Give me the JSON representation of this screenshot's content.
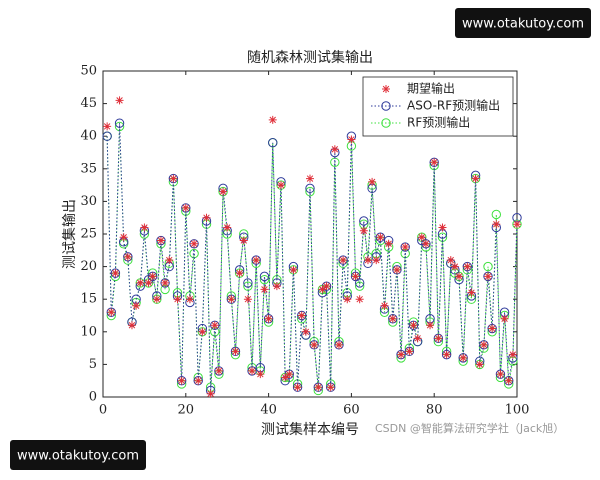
{
  "chart_data": {
    "type": "line",
    "title": "随机森林测试集输出",
    "xlabel": "测试集样本编号",
    "ylabel": "测试集输出",
    "watermarks": [
      "www.otakutoy.com",
      "www.otakutoy.com"
    ],
    "credit": "CSDN @智能算法研究学社（Jack旭）",
    "xlim": [
      0,
      100
    ],
    "xticks": [
      0,
      20,
      40,
      60,
      80,
      100
    ],
    "ylim": [
      0,
      50
    ],
    "yticks": [
      0,
      5,
      10,
      15,
      20,
      25,
      30,
      35,
      40,
      45,
      50
    ],
    "grid": false,
    "legend": "northeast",
    "x": [
      1,
      2,
      3,
      4,
      5,
      6,
      7,
      8,
      9,
      10,
      11,
      12,
      13,
      14,
      15,
      16,
      17,
      18,
      19,
      20,
      21,
      22,
      23,
      24,
      25,
      26,
      27,
      28,
      29,
      30,
      31,
      32,
      33,
      34,
      35,
      36,
      37,
      38,
      39,
      40,
      41,
      42,
      43,
      44,
      45,
      46,
      47,
      48,
      49,
      50,
      51,
      52,
      53,
      54,
      55,
      56,
      57,
      58,
      59,
      60,
      61,
      62,
      63,
      64,
      65,
      66,
      67,
      68,
      69,
      70,
      71,
      72,
      73,
      74,
      75,
      76,
      77,
      78,
      79,
      80,
      81,
      82,
      83,
      84,
      85,
      86,
      87,
      88,
      89,
      90,
      91,
      92,
      93,
      94,
      95,
      96,
      97,
      98,
      99,
      100
    ],
    "series": [
      {
        "name": "期望输出",
        "color": "#e0303a",
        "marker": "star",
        "line": false,
        "values": [
          41.5,
          13,
          19,
          45.5,
          24.5,
          21.5,
          11,
          14,
          17.5,
          26,
          17.5,
          18.5,
          15,
          24,
          17.5,
          21,
          33.5,
          15,
          2.5,
          29,
          15,
          23.5,
          2.5,
          10,
          27.5,
          0.5,
          11,
          4,
          31.5,
          26,
          15,
          7,
          19,
          24,
          15,
          4,
          21,
          3.5,
          16.5,
          12,
          42.5,
          17,
          32.5,
          3,
          3.5,
          19.5,
          1.5,
          12.5,
          10,
          33.5,
          8,
          1.5,
          16.5,
          17,
          1.5,
          38,
          8,
          21,
          15,
          39.5,
          18.5,
          15,
          25.5,
          21,
          33,
          21,
          24.5,
          14,
          23.5,
          12,
          19.5,
          6.5,
          23,
          7,
          11,
          9,
          24.5,
          23.5,
          11,
          36,
          9,
          26,
          6.5,
          21,
          20,
          18.5,
          6,
          20,
          16,
          33.5,
          5,
          8,
          18.5,
          10.5,
          26.5,
          3.5,
          12,
          2.5,
          6.5,
          26.5
        ]
      },
      {
        "name": "ASO-RF预测输出",
        "color": "#2e3a9a",
        "marker": "circle",
        "line": true,
        "values": [
          40,
          13,
          19,
          42,
          23.8,
          21.5,
          11.5,
          15,
          17,
          25.5,
          18,
          18.5,
          15.5,
          24,
          17.5,
          20,
          33.5,
          15.5,
          2.5,
          29,
          14.5,
          23.5,
          2.5,
          10.5,
          27,
          1,
          11,
          4,
          32,
          25.5,
          15,
          7,
          19.5,
          24.5,
          17.5,
          4,
          21,
          4.5,
          18.5,
          12,
          39,
          17.5,
          33,
          2.5,
          3.5,
          20,
          1.5,
          12.5,
          9.5,
          32,
          8,
          1.5,
          16,
          17,
          1.5,
          37.5,
          8,
          21,
          15.5,
          40,
          18.5,
          17.5,
          27,
          20.5,
          32,
          21.5,
          24.5,
          13.5,
          24,
          12,
          19.5,
          6.5,
          23,
          7,
          11,
          8.5,
          24,
          23.5,
          12,
          36,
          9,
          25,
          6.5,
          20.5,
          19.5,
          18,
          6,
          20,
          15.5,
          34,
          5.5,
          8,
          18.5,
          10.5,
          26,
          3.5,
          13,
          2.5,
          6,
          27.5
        ]
      },
      {
        "name": "RF预测输出",
        "color": "#3ee03e",
        "marker": "circle",
        "line": true,
        "values": [
          40,
          12.5,
          18.5,
          41.5,
          23.5,
          21,
          11.5,
          14.5,
          17.5,
          25,
          17.5,
          19,
          15,
          23.5,
          16.5,
          20.5,
          33,
          16,
          2,
          28.5,
          15.5,
          22,
          3,
          10,
          26.5,
          1.5,
          10,
          3.5,
          31.5,
          25,
          15.5,
          6.5,
          19,
          25,
          17,
          4.5,
          20.5,
          4,
          18,
          11.5,
          39,
          18,
          32.5,
          3,
          3,
          19.5,
          2,
          12,
          9.5,
          31.5,
          8.5,
          1,
          16.5,
          16.5,
          2,
          36,
          8.5,
          20.5,
          16,
          38.5,
          19,
          17,
          26.5,
          21.5,
          32.5,
          22,
          24,
          13,
          23,
          11.5,
          20,
          6,
          22,
          7.5,
          11.5,
          8.5,
          24.5,
          23,
          11.5,
          35.5,
          8.5,
          24.5,
          7,
          20.5,
          19,
          18.5,
          5.5,
          19.5,
          15,
          33.5,
          5,
          7.5,
          20,
          10,
          28,
          3,
          12.5,
          2,
          5.5,
          26.5
        ]
      }
    ]
  }
}
